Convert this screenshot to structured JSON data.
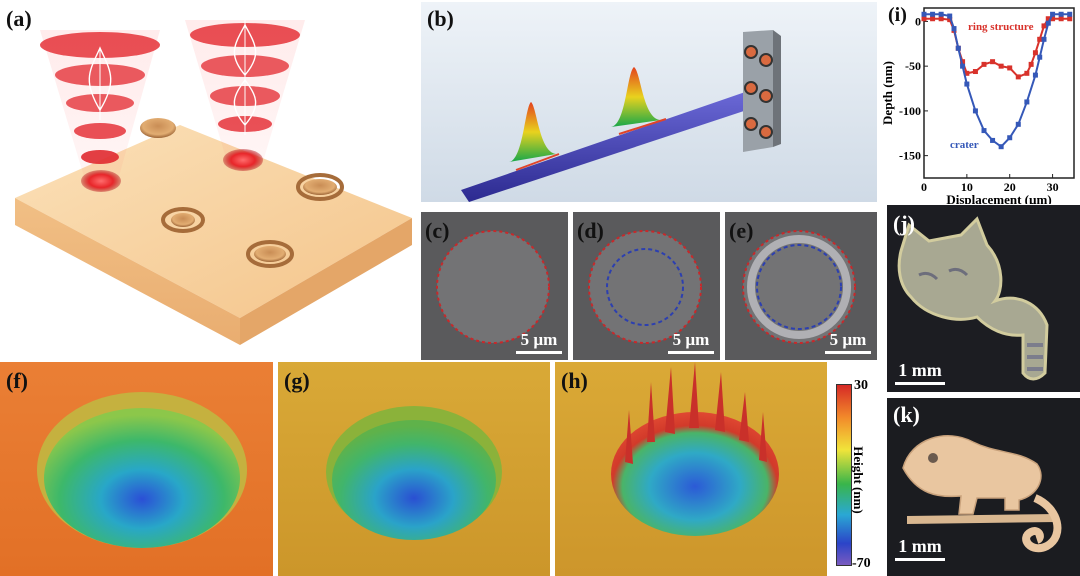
{
  "panels": {
    "a": {
      "label": "(a)"
    },
    "b": {
      "label": "(b)"
    },
    "c": {
      "label": "(c)",
      "scale": "5 µm"
    },
    "d": {
      "label": "(d)",
      "scale": "5 µm"
    },
    "e": {
      "label": "(e)",
      "scale": "5 µm"
    },
    "f": {
      "label": "(f)"
    },
    "g": {
      "label": "(g)"
    },
    "h": {
      "label": "(h)"
    },
    "i": {
      "label": "(i)"
    },
    "j": {
      "label": "(j)",
      "scale": "1 mm"
    },
    "k": {
      "label": "(k)",
      "scale": "1 mm"
    }
  },
  "colorbar": {
    "title": "Height (nm)",
    "max_label": "30",
    "min_label": "-70",
    "max": 30,
    "min": -70
  },
  "colors": {
    "ring": "#d8322b",
    "crater": "#3558b8",
    "beam": "#e23030",
    "substrate": "#f6cc98"
  },
  "chart_data": {
    "type": "line",
    "xlabel": "Displacement (µm)",
    "ylabel": "Depth (nm)",
    "xlim": [
      0,
      35
    ],
    "ylim": [
      -175,
      15
    ],
    "xticks": [
      0,
      10,
      20,
      30
    ],
    "yticks": [
      0,
      -50,
      -100,
      -150
    ],
    "series": [
      {
        "name": "ring structure",
        "color": "#d8322b",
        "x": [
          0,
          2,
          4,
          6,
          7,
          8,
          9,
          10,
          12,
          14,
          16,
          18,
          20,
          22,
          24,
          25,
          26,
          27,
          28,
          29,
          30,
          32,
          34
        ],
        "y": [
          3,
          3,
          3,
          2,
          -10,
          -30,
          -45,
          -58,
          -56,
          -48,
          -45,
          -50,
          -52,
          -62,
          -58,
          -48,
          -35,
          -20,
          -5,
          3,
          3,
          3,
          3
        ]
      },
      {
        "name": "crater",
        "color": "#3558b8",
        "x": [
          0,
          2,
          4,
          6,
          7,
          8,
          9,
          10,
          12,
          14,
          16,
          18,
          20,
          22,
          24,
          26,
          27,
          28,
          29,
          30,
          32,
          34
        ],
        "y": [
          8,
          8,
          8,
          6,
          -8,
          -30,
          -50,
          -70,
          -100,
          -122,
          -133,
          -140,
          -130,
          -115,
          -90,
          -60,
          -40,
          -20,
          -2,
          8,
          8,
          8
        ]
      }
    ]
  }
}
